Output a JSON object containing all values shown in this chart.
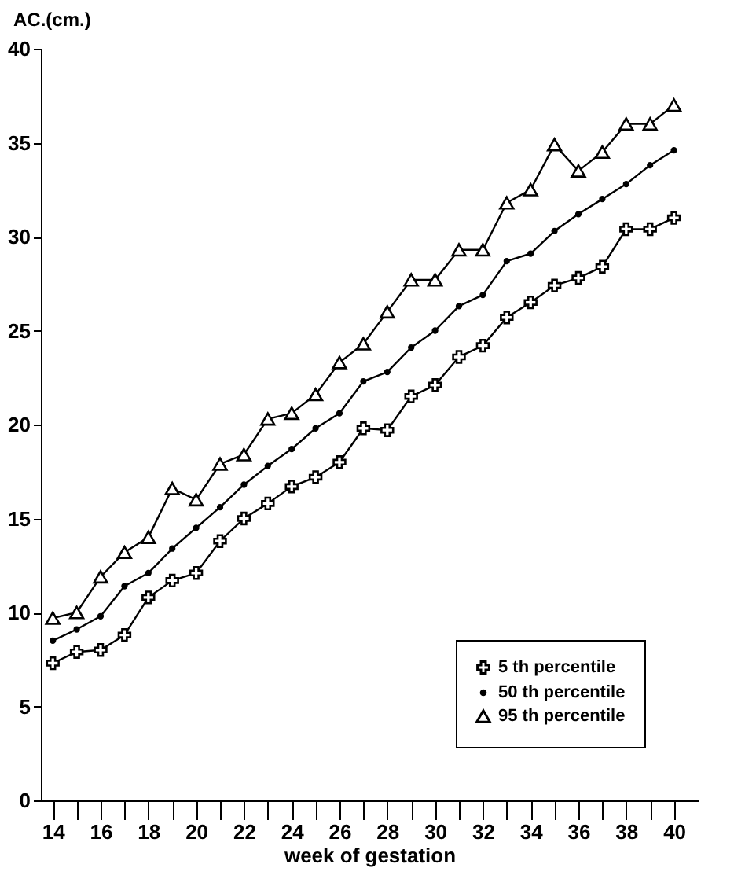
{
  "chart_data": {
    "type": "line",
    "xlabel": "week of gestation",
    "ylabel": "AC.(cm.)",
    "x": [
      14,
      15,
      16,
      17,
      18,
      19,
      20,
      21,
      22,
      23,
      24,
      25,
      26,
      27,
      28,
      29,
      30,
      31,
      32,
      33,
      34,
      35,
      36,
      37,
      38,
      39,
      40
    ],
    "series": [
      {
        "name": "5 th percentile",
        "color": "#000000",
        "marker": "cross",
        "values": [
          7.3,
          7.9,
          8.0,
          8.8,
          10.8,
          11.7,
          12.1,
          13.8,
          15.0,
          15.8,
          16.7,
          17.2,
          18.0,
          19.8,
          19.7,
          21.5,
          22.1,
          23.6,
          24.2,
          25.7,
          26.5,
          27.4,
          27.8,
          28.4,
          30.4,
          30.4,
          31.0
        ]
      },
      {
        "name": "50 th percentile",
        "color": "#000000",
        "marker": "circle",
        "values": [
          8.5,
          9.1,
          9.8,
          11.4,
          12.1,
          13.4,
          14.5,
          15.6,
          16.8,
          17.8,
          18.7,
          19.8,
          20.6,
          22.3,
          22.8,
          24.1,
          25.0,
          26.3,
          26.9,
          28.7,
          29.1,
          30.3,
          31.2,
          32.0,
          32.8,
          33.8,
          34.6
        ]
      },
      {
        "name": "95 th percentile",
        "color": "#000000",
        "marker": "triangle",
        "values": [
          9.7,
          10.0,
          11.9,
          13.2,
          14.0,
          16.6,
          16.0,
          17.9,
          18.4,
          20.3,
          20.6,
          21.6,
          23.3,
          24.3,
          26.0,
          27.7,
          27.7,
          29.3,
          29.3,
          31.8,
          32.5,
          34.9,
          33.5,
          34.5,
          36.0,
          36.0,
          37.0
        ]
      }
    ],
    "xlim": [
      13.5,
      41
    ],
    "xticks": [
      14,
      {
        "value": 15,
        "label": null
      },
      16,
      {
        "value": 17,
        "label": null
      },
      18,
      {
        "value": 19,
        "label": null
      },
      20,
      {
        "value": 21,
        "label": null
      },
      22,
      {
        "value": 23,
        "label": null
      },
      24,
      {
        "value": 25,
        "label": null
      },
      26,
      {
        "value": 27,
        "label": null
      },
      28,
      {
        "value": 29,
        "label": null
      },
      30,
      {
        "value": 31,
        "label": null
      },
      32,
      {
        "value": 33,
        "label": null
      },
      34,
      {
        "value": 35,
        "label": null
      },
      36,
      {
        "value": 37,
        "label": null
      },
      38,
      {
        "value": 39,
        "label": null
      },
      40
    ],
    "ylim": [
      0,
      40
    ],
    "yticks": [
      0,
      5,
      10,
      15,
      20,
      25,
      30,
      35,
      40
    ],
    "grid": false,
    "legend": "bottom right",
    "line_style": "solid"
  }
}
